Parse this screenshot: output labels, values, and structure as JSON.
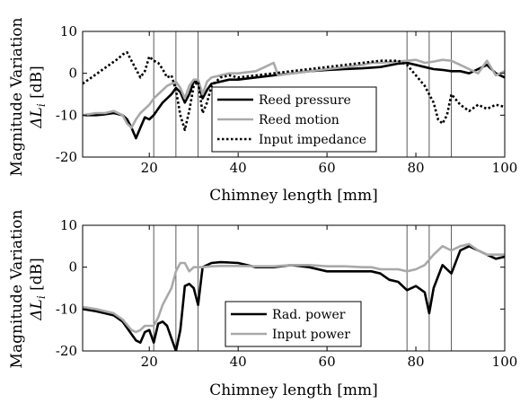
{
  "chart_data": [
    {
      "type": "line",
      "xlabel": "Chimney length [mm]",
      "ylabel": "Magnitude Variation",
      "ylabel_sub": "ΔL",
      "ylabel_sub_index": "i",
      "ylabel_unit": "[dB]",
      "xlim": [
        5,
        100
      ],
      "ylim": [
        -20,
        10
      ],
      "xticks": [
        20,
        40,
        60,
        80,
        100
      ],
      "yticks": [
        -20,
        -10,
        0,
        10
      ],
      "vlines": [
        21,
        26,
        31,
        78,
        83,
        88
      ],
      "grid": false,
      "legend_position": "center-bottom",
      "series": [
        {
          "name": "Reed pressure",
          "color": "#000000",
          "style": "solid",
          "x": [
            5,
            8,
            10,
            12,
            14,
            15,
            16,
            17,
            18,
            19,
            20,
            21,
            22,
            23,
            24,
            25,
            26,
            27,
            28,
            29,
            30,
            31,
            32,
            33,
            34,
            36,
            38,
            40,
            44,
            48,
            52,
            56,
            60,
            64,
            68,
            72,
            76,
            78,
            80,
            82,
            84,
            86,
            88,
            90,
            92,
            94,
            96,
            98,
            100
          ],
          "y": [
            -10,
            -10,
            -9.8,
            -9.5,
            -10,
            -11,
            -13,
            -15.5,
            -13,
            -10.5,
            -11,
            -10,
            -8.5,
            -7,
            -6,
            -5,
            -3.5,
            -4.5,
            -7,
            -5,
            -2,
            -2,
            -6,
            -4,
            -2.5,
            -2,
            -1.5,
            -1.5,
            -1,
            -0.5,
            0,
            0.5,
            0.8,
            1,
            1.2,
            1.5,
            2.3,
            2.5,
            2,
            1.5,
            1,
            0.8,
            0.5,
            0.5,
            0,
            1,
            2,
            0,
            -1
          ]
        },
        {
          "name": "Reed motion",
          "color": "#a9a9a9",
          "style": "solid",
          "x": [
            5,
            8,
            10,
            12,
            14,
            15,
            16,
            17,
            18,
            19,
            20,
            21,
            22,
            23,
            24,
            25,
            26,
            27,
            28,
            29,
            30,
            31,
            32,
            33,
            34,
            36,
            38,
            40,
            44,
            46,
            48,
            49,
            52,
            56,
            60,
            64,
            68,
            70,
            72,
            76,
            78,
            80,
            82,
            84,
            86,
            88,
            90,
            92,
            94,
            96,
            98,
            100
          ],
          "y": [
            -10,
            -9.5,
            -9.5,
            -9,
            -10,
            -12,
            -13,
            -11,
            -9.5,
            -8.5,
            -7.5,
            -6,
            -5,
            -4,
            -3,
            -2.5,
            -2,
            -3.5,
            -6,
            -3,
            -1.5,
            -1.5,
            -5,
            -2,
            -1,
            -0.5,
            0,
            0,
            0.5,
            1.5,
            2.5,
            -0.5,
            0,
            0.5,
            1,
            1.5,
            2,
            2.5,
            2.5,
            2.8,
            3,
            3.2,
            2.5,
            2.8,
            3.2,
            3,
            2,
            1,
            0,
            3,
            -0.5,
            0.5
          ]
        },
        {
          "name": "Input impedance",
          "color": "#000000",
          "style": "dotted",
          "x": [
            5,
            7,
            9,
            11,
            13,
            14,
            15,
            16,
            17,
            18,
            19,
            20,
            21,
            22,
            23,
            24,
            25,
            26,
            27,
            28,
            29,
            30,
            31,
            32,
            33,
            34,
            36,
            38,
            40,
            44,
            48,
            52,
            56,
            60,
            64,
            68,
            72,
            76,
            78,
            80,
            82,
            84,
            85,
            86,
            87,
            88,
            90,
            92,
            94,
            96,
            98,
            100
          ],
          "y": [
            -2.5,
            -1,
            0.5,
            2,
            3.5,
            4.5,
            5,
            3,
            1,
            -1,
            0.5,
            4,
            3,
            2.5,
            1,
            -1,
            -0.5,
            -4,
            -10,
            -13.5,
            -9,
            -3,
            -2,
            -9.5,
            -7,
            -3,
            -1,
            -0.5,
            -1,
            -0.5,
            0,
            0.5,
            1,
            1.5,
            2,
            2.5,
            3,
            3,
            2,
            -0.5,
            -3,
            -7,
            -11,
            -12,
            -10,
            -5,
            -7.5,
            -9,
            -7.5,
            -8.5,
            -7.5,
            -8
          ]
        }
      ]
    },
    {
      "type": "line",
      "xlabel": "Chimney length [mm]",
      "ylabel": "Magnitude Variation",
      "ylabel_sub": "ΔL",
      "ylabel_sub_index": "i",
      "ylabel_unit": "[dB]",
      "xlim": [
        5,
        100
      ],
      "ylim": [
        -20,
        10
      ],
      "xticks": [
        20,
        40,
        60,
        80,
        100
      ],
      "yticks": [
        -20,
        -10,
        0,
        10
      ],
      "vlines": [
        21,
        26,
        31,
        78,
        83,
        88
      ],
      "grid": false,
      "legend_position": "center-bottom",
      "series": [
        {
          "name": "Rad. power",
          "color": "#000000",
          "style": "solid",
          "x": [
            5,
            8,
            10,
            12,
            14,
            16,
            17,
            18,
            19,
            20,
            21,
            22,
            23,
            24,
            25,
            26,
            27,
            28,
            29,
            30,
            31,
            32,
            34,
            36,
            38,
            40,
            44,
            48,
            52,
            56,
            60,
            64,
            68,
            70,
            72,
            74,
            76,
            78,
            80,
            82,
            83,
            84,
            86,
            88,
            90,
            92,
            94,
            96,
            98,
            100
          ],
          "y": [
            -10,
            -10.5,
            -11,
            -11.5,
            -13,
            -16,
            -17.5,
            -18,
            -15.5,
            -15,
            -18,
            -13.5,
            -13,
            -14,
            -17,
            -20,
            -15,
            -4.5,
            -4,
            -5,
            -9,
            0,
            1,
            1.2,
            1.1,
            1,
            0,
            0,
            0.5,
            0,
            -1,
            -1,
            -1,
            -1,
            -1.5,
            -3,
            -3.5,
            -5.5,
            -4.5,
            -6,
            -11,
            -5,
            0.5,
            -1.5,
            4,
            5,
            4,
            3,
            2,
            2.5
          ]
        },
        {
          "name": "Input power",
          "color": "#a9a9a9",
          "style": "solid",
          "x": [
            5,
            8,
            10,
            12,
            14,
            16,
            17,
            18,
            19,
            20,
            21,
            22,
            23,
            24,
            25,
            26,
            27,
            28,
            29,
            30,
            31,
            32,
            34,
            36,
            38,
            40,
            44,
            48,
            52,
            56,
            60,
            64,
            68,
            70,
            72,
            74,
            76,
            78,
            80,
            82,
            84,
            86,
            88,
            90,
            92,
            94,
            96,
            98,
            100
          ],
          "y": [
            -9.5,
            -10,
            -10.5,
            -11,
            -12.5,
            -15,
            -15.5,
            -15,
            -14,
            -14,
            -14,
            -12,
            -9,
            -7,
            -5,
            -1,
            1,
            1,
            -1,
            0,
            0,
            0,
            0.2,
            0.3,
            0.3,
            0.3,
            0.2,
            0.2,
            0.5,
            0.5,
            0.2,
            0.2,
            0,
            0,
            -0.5,
            -0.5,
            -0.5,
            -1,
            -0.5,
            0.5,
            3,
            5,
            4,
            5,
            5.5,
            4,
            3,
            3,
            3
          ]
        }
      ]
    }
  ]
}
